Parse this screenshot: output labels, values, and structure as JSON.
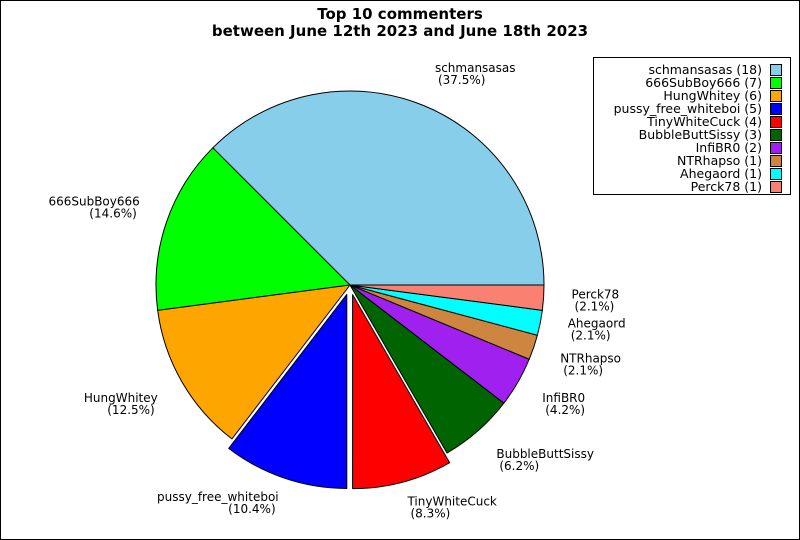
{
  "chart_data": {
    "type": "pie",
    "title": [
      "Top 10 commenters",
      "between June 12th 2023 and June 18th 2023"
    ],
    "slices": [
      {
        "name": "schmansasas",
        "value": 18,
        "pct": "37.5%",
        "color": "#87CEEB",
        "legend": "schmansasas (18)",
        "explode": false
      },
      {
        "name": "666SubBoy666",
        "value": 7,
        "pct": "14.6%",
        "color": "#00FF00",
        "legend": "666SubBoy666 (7)",
        "explode": false
      },
      {
        "name": "HungWhitey",
        "value": 6,
        "pct": "12.5%",
        "color": "#FFA500",
        "legend": "HungWhitey (6)",
        "explode": false
      },
      {
        "name": "pussy_free_whiteboi",
        "value": 5,
        "pct": "10.4%",
        "color": "#0000FF",
        "legend": "pussy_free_whiteboi (5)",
        "explode": true
      },
      {
        "name": "TinyWhiteCuck",
        "value": 4,
        "pct": "8.3%",
        "color": "#FF0000",
        "legend": "TinyWhiteCuck (4)",
        "explode": true
      },
      {
        "name": "BubbleButtSissy",
        "value": 3,
        "pct": "6.2%",
        "color": "#006400",
        "legend": "BubbleButtSissy (3)",
        "explode": false
      },
      {
        "name": "InfiBR0",
        "value": 2,
        "pct": "4.2%",
        "color": "#A020F0",
        "legend": "InfiBR0 (2)",
        "explode": false
      },
      {
        "name": "NTRhapso",
        "value": 1,
        "pct": "2.1%",
        "color": "#CD853F",
        "legend": "NTRhapso (1)",
        "explode": false
      },
      {
        "name": "Ahegaord",
        "value": 1,
        "pct": "2.1%",
        "color": "#00FFFF",
        "legend": "Ahegaord (1)",
        "explode": false
      },
      {
        "name": "Perck78",
        "value": 1,
        "pct": "2.1%",
        "color": "#FA8072",
        "legend": "Perck78 (1)",
        "explode": false
      }
    ],
    "start_angle_deg": 0,
    "direction": "counterclockwise",
    "legend_position": "top-right"
  }
}
